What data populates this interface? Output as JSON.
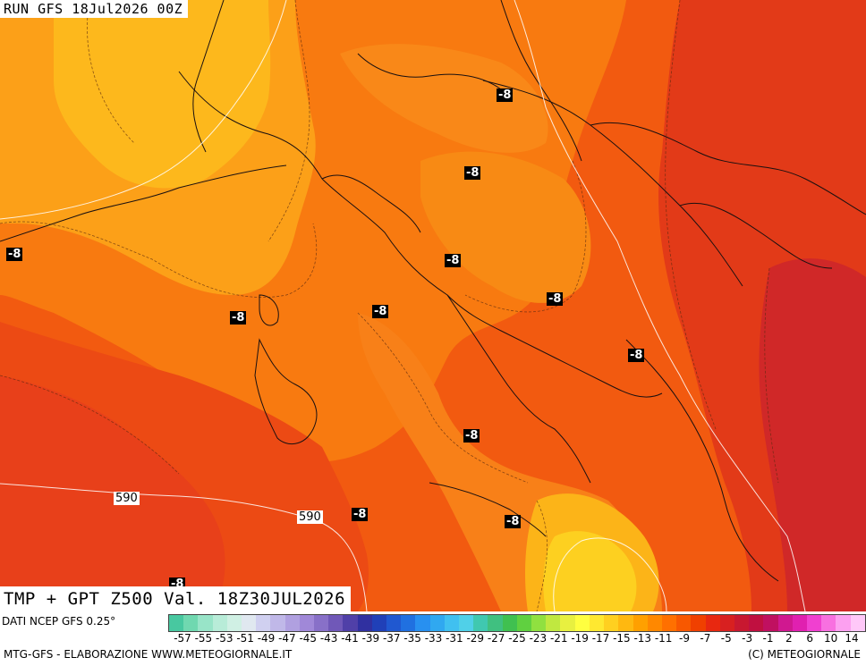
{
  "header": {
    "run": "RUN GFS 18Jul2026 00Z"
  },
  "title": "TMP + GPT Z500 Val. 18Z30JUL2026",
  "source": "DATI NCEP GFS 0.25°",
  "footer": {
    "left": "MTG-GFS - ELABORAZIONE WWW.METEOGIORNALE.IT",
    "right": "(C) METEOGIORNALE"
  },
  "temp_labels": [
    "-8",
    "-8",
    "-8",
    "-8",
    "-8",
    "-8",
    "-8",
    "-8",
    "-8",
    "-8",
    "-8",
    "-8"
  ],
  "gpt_labels": [
    "590",
    "590"
  ],
  "legend": {
    "ticks": [
      "-57",
      "-55",
      "-53",
      "-51",
      "-49",
      "-47",
      "-45",
      "-43",
      "-41",
      "-39",
      "-37",
      "-35",
      "-33",
      "-31",
      "-29",
      "-27",
      "-25",
      "-23",
      "-21",
      "-19",
      "-17",
      "-15",
      "-13",
      "-11",
      "-9",
      "-7",
      "-5",
      "-3",
      "-1",
      "2",
      "6",
      "10",
      "14"
    ],
    "colors": [
      "#48c8a0",
      "#70d8b0",
      "#98e4c8",
      "#b8ecd8",
      "#d0f0e4",
      "#e0e8f0",
      "#d0d0f0",
      "#c0b8e8",
      "#b0a0e0",
      "#a088d8",
      "#8870c8",
      "#7058b8",
      "#5040a8",
      "#3030a0",
      "#2040b8",
      "#2058d0",
      "#2070e0",
      "#2890f0",
      "#30a8f0",
      "#40c0f0",
      "#50d0e8",
      "#40c8b0",
      "#40c080",
      "#40c050",
      "#60d040",
      "#90e040",
      "#c0e840",
      "#e8f040",
      "#ffff40",
      "#ffe830",
      "#ffd020",
      "#ffb810",
      "#ffa000",
      "#ff8800",
      "#ff7000",
      "#f85800",
      "#f04000",
      "#e82810",
      "#d82020",
      "#c81830",
      "#c01040",
      "#c01060",
      "#d01890",
      "#e020b0",
      "#f040d0",
      "#f870e0",
      "#fca0f0",
      "#ffc8f8"
    ]
  }
}
